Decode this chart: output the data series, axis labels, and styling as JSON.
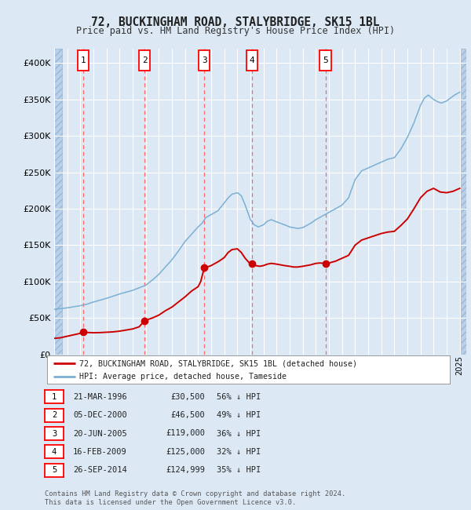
{
  "title": "72, BUCKINGHAM ROAD, STALYBRIDGE, SK15 1BL",
  "subtitle": "Price paid vs. HM Land Registry's House Price Index (HPI)",
  "ylim": [
    0,
    420000
  ],
  "yticks": [
    0,
    50000,
    100000,
    150000,
    200000,
    250000,
    300000,
    350000,
    400000
  ],
  "xlim_start": 1994.0,
  "xlim_end": 2025.5,
  "bg_color": "#dce9f5",
  "plot_bg_color": "#dce9f5",
  "hatch_color": "#b8d0e8",
  "grid_color": "#ffffff",
  "red_line_color": "#cc0000",
  "blue_line_color": "#7bafd4",
  "red_dot_color": "#cc0000",
  "sale_dates_x": [
    1996.22,
    2000.92,
    2005.47,
    2009.12,
    2014.73
  ],
  "sale_prices_y": [
    30500,
    46500,
    119000,
    125000,
    124999
  ],
  "sale_labels": [
    "1",
    "2",
    "3",
    "4",
    "5"
  ],
  "vline_color": "#ff6666",
  "footer_text": "Contains HM Land Registry data © Crown copyright and database right 2024.\nThis data is licensed under the Open Government Licence v3.0.",
  "table_rows": [
    [
      "1",
      "21-MAR-1996",
      "£30,500",
      "56% ↓ HPI"
    ],
    [
      "2",
      "05-DEC-2000",
      "£46,500",
      "49% ↓ HPI"
    ],
    [
      "3",
      "20-JUN-2005",
      "£119,000",
      "36% ↓ HPI"
    ],
    [
      "4",
      "16-FEB-2009",
      "£125,000",
      "32% ↓ HPI"
    ],
    [
      "5",
      "26-SEP-2014",
      "£124,999",
      "35% ↓ HPI"
    ]
  ],
  "legend_line1": "72, BUCKINGHAM ROAD, STALYBRIDGE, SK15 1BL (detached house)",
  "legend_line2": "HPI: Average price, detached house, Tameside",
  "hpi_x": [
    1994.0,
    1994.5,
    1995.0,
    1995.5,
    1996.0,
    1996.5,
    1997.0,
    1997.5,
    1998.0,
    1998.5,
    1999.0,
    1999.5,
    2000.0,
    2000.5,
    2001.0,
    2001.5,
    2002.0,
    2002.5,
    2003.0,
    2003.5,
    2004.0,
    2004.5,
    2005.0,
    2005.3,
    2005.6,
    2006.0,
    2006.5,
    2007.0,
    2007.3,
    2007.6,
    2008.0,
    2008.3,
    2008.6,
    2009.0,
    2009.3,
    2009.6,
    2010.0,
    2010.3,
    2010.6,
    2011.0,
    2011.3,
    2011.6,
    2012.0,
    2012.3,
    2012.6,
    2013.0,
    2013.3,
    2013.6,
    2014.0,
    2014.3,
    2014.6,
    2015.0,
    2015.5,
    2016.0,
    2016.5,
    2017.0,
    2017.5,
    2018.0,
    2018.5,
    2019.0,
    2019.5,
    2020.0,
    2020.5,
    2021.0,
    2021.5,
    2022.0,
    2022.3,
    2022.6,
    2023.0,
    2023.3,
    2023.6,
    2024.0,
    2024.3,
    2024.6,
    2025.0
  ],
  "hpi_y": [
    62000,
    63000,
    64000,
    65500,
    67000,
    69000,
    72000,
    74500,
    77000,
    80000,
    83000,
    85500,
    88000,
    91500,
    95000,
    102000,
    110000,
    120000,
    130000,
    142000,
    155000,
    165000,
    175000,
    180000,
    188000,
    192000,
    197000,
    208000,
    215000,
    220000,
    222000,
    218000,
    205000,
    185000,
    178000,
    175000,
    178000,
    183000,
    185000,
    182000,
    180000,
    178000,
    175000,
    174000,
    173000,
    174000,
    177000,
    180000,
    185000,
    188000,
    191000,
    195000,
    200000,
    205000,
    215000,
    240000,
    252000,
    256000,
    260000,
    264000,
    268000,
    270000,
    282000,
    298000,
    318000,
    342000,
    352000,
    356000,
    350000,
    347000,
    345000,
    348000,
    352000,
    356000,
    360000
  ],
  "red_x": [
    1994.0,
    1994.5,
    1995.0,
    1995.5,
    1996.0,
    1996.22,
    1996.5,
    1997.0,
    1997.5,
    1998.0,
    1998.5,
    1999.0,
    1999.5,
    2000.0,
    2000.5,
    2000.92,
    2001.0,
    2001.5,
    2002.0,
    2002.5,
    2003.0,
    2003.5,
    2004.0,
    2004.5,
    2005.0,
    2005.2,
    2005.47,
    2005.7,
    2006.0,
    2006.3,
    2006.6,
    2007.0,
    2007.3,
    2007.6,
    2008.0,
    2008.3,
    2008.6,
    2009.0,
    2009.12,
    2009.4,
    2009.7,
    2010.0,
    2010.3,
    2010.6,
    2011.0,
    2011.3,
    2011.6,
    2012.0,
    2012.3,
    2012.6,
    2013.0,
    2013.3,
    2013.6,
    2014.0,
    2014.3,
    2014.73,
    2015.0,
    2015.5,
    2016.0,
    2016.5,
    2017.0,
    2017.5,
    2018.0,
    2018.5,
    2019.0,
    2019.5,
    2020.0,
    2020.5,
    2021.0,
    2021.5,
    2022.0,
    2022.5,
    2023.0,
    2023.5,
    2024.0,
    2024.5,
    2025.0
  ],
  "red_y": [
    22000,
    23000,
    25000,
    27000,
    29000,
    30500,
    30200,
    29800,
    30000,
    30500,
    31000,
    32000,
    33500,
    35000,
    38000,
    46500,
    47000,
    50000,
    54000,
    60000,
    65000,
    72000,
    79000,
    87000,
    93000,
    100000,
    119000,
    120000,
    122000,
    125000,
    128000,
    133000,
    140000,
    144000,
    145000,
    140000,
    132000,
    124000,
    125000,
    122000,
    121000,
    122000,
    124000,
    125000,
    124000,
    123000,
    122000,
    121000,
    120000,
    120000,
    121000,
    122000,
    123000,
    125000,
    125500,
    124999,
    125500,
    128000,
    132000,
    136000,
    150000,
    157000,
    160000,
    163000,
    166000,
    168000,
    169000,
    177000,
    186000,
    200000,
    215000,
    224000,
    228000,
    223000,
    222000,
    224000,
    228000
  ]
}
